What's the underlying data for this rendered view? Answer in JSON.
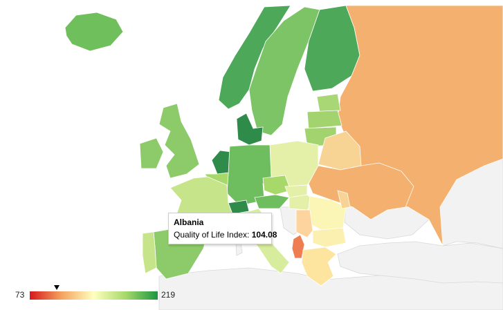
{
  "tooltip": {
    "country": "Albania",
    "metric_label": "Quality of Life Index:",
    "value": "104.08"
  },
  "legend": {
    "min": "73",
    "max": "219",
    "marker_value": 104.08,
    "scale_min": 73,
    "scale_max": 219,
    "colors": [
      "#d7191c",
      "#f4a460",
      "#ffffbf",
      "#a6d96a",
      "#1a9641"
    ]
  },
  "regions": [
    {
      "name": "Iceland",
      "color": "#6fbf5c"
    },
    {
      "name": "Norway",
      "color": "#4ea85a"
    },
    {
      "name": "Sweden",
      "color": "#7cc465"
    },
    {
      "name": "Finland",
      "color": "#4ea85a"
    },
    {
      "name": "Russia",
      "color": "#f4b06e"
    },
    {
      "name": "Estonia",
      "color": "#a9d775"
    },
    {
      "name": "Latvia",
      "color": "#a2d36f"
    },
    {
      "name": "Lithuania",
      "color": "#a2d36f"
    },
    {
      "name": "Belarus",
      "color": "#f7d394"
    },
    {
      "name": "Poland",
      "color": "#e4f0a8"
    },
    {
      "name": "Ukraine",
      "color": "#f4b06e"
    },
    {
      "name": "United Kingdom",
      "color": "#8cca6a"
    },
    {
      "name": "Ireland",
      "color": "#8cca6a"
    },
    {
      "name": "Denmark",
      "color": "#2e8b4a"
    },
    {
      "name": "Netherlands",
      "color": "#2e8b4a"
    },
    {
      "name": "Belgium",
      "color": "#a6d96a"
    },
    {
      "name": "Germany",
      "color": "#6ebd5e"
    },
    {
      "name": "Czechia",
      "color": "#a6d96a"
    },
    {
      "name": "Slovakia",
      "color": "#e4f0a8"
    },
    {
      "name": "Austria",
      "color": "#6ebd5e"
    },
    {
      "name": "Switzerland",
      "color": "#2e8b4a"
    },
    {
      "name": "France",
      "color": "#c6e48a"
    },
    {
      "name": "Hungary",
      "color": "#e4f0a8"
    },
    {
      "name": "Romania",
      "color": "#fcf6b6"
    },
    {
      "name": "Moldova",
      "color": "#f7d394"
    },
    {
      "name": "Bulgaria",
      "color": "#fcf0b0"
    },
    {
      "name": "Serbia",
      "color": "#fdd49e"
    },
    {
      "name": "Albania",
      "color": "#ee7d52"
    },
    {
      "name": "Greece",
      "color": "#fde5a0"
    },
    {
      "name": "Italy",
      "color": "#d7ec9c"
    },
    {
      "name": "Spain",
      "color": "#8cca6a"
    },
    {
      "name": "Portugal",
      "color": "#c6e48a"
    }
  ]
}
